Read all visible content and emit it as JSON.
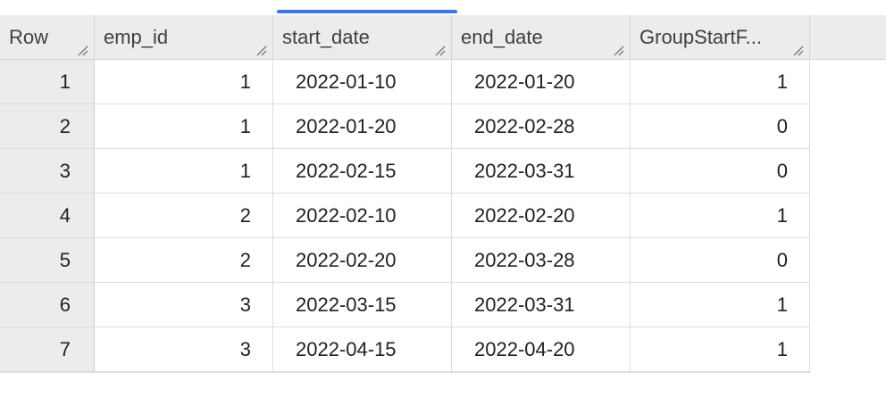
{
  "columns": [
    {
      "key": "row",
      "label": "Row"
    },
    {
      "key": "emp_id",
      "label": "emp_id"
    },
    {
      "key": "start_date",
      "label": "start_date"
    },
    {
      "key": "end_date",
      "label": "end_date"
    },
    {
      "key": "group_start_flag",
      "label": "GroupStartF..."
    }
  ],
  "rows": [
    {
      "row": "1",
      "emp_id": "1",
      "start_date": "2022-01-10",
      "end_date": "2022-01-20",
      "group_start_flag": "1"
    },
    {
      "row": "2",
      "emp_id": "1",
      "start_date": "2022-01-20",
      "end_date": "2022-02-28",
      "group_start_flag": "0"
    },
    {
      "row": "3",
      "emp_id": "1",
      "start_date": "2022-02-15",
      "end_date": "2022-03-31",
      "group_start_flag": "0"
    },
    {
      "row": "4",
      "emp_id": "2",
      "start_date": "2022-02-10",
      "end_date": "2022-02-20",
      "group_start_flag": "1"
    },
    {
      "row": "5",
      "emp_id": "2",
      "start_date": "2022-02-20",
      "end_date": "2022-03-28",
      "group_start_flag": "0"
    },
    {
      "row": "6",
      "emp_id": "3",
      "start_date": "2022-03-15",
      "end_date": "2022-03-31",
      "group_start_flag": "1"
    },
    {
      "row": "7",
      "emp_id": "3",
      "start_date": "2022-04-15",
      "end_date": "2022-04-20",
      "group_start_flag": "1"
    }
  ],
  "icons": {
    "column_resize": "column-resize-icon"
  },
  "colors": {
    "active_tab_indicator": "#3b78e7",
    "header_background": "#ececec",
    "gridline": "#dadce0"
  }
}
